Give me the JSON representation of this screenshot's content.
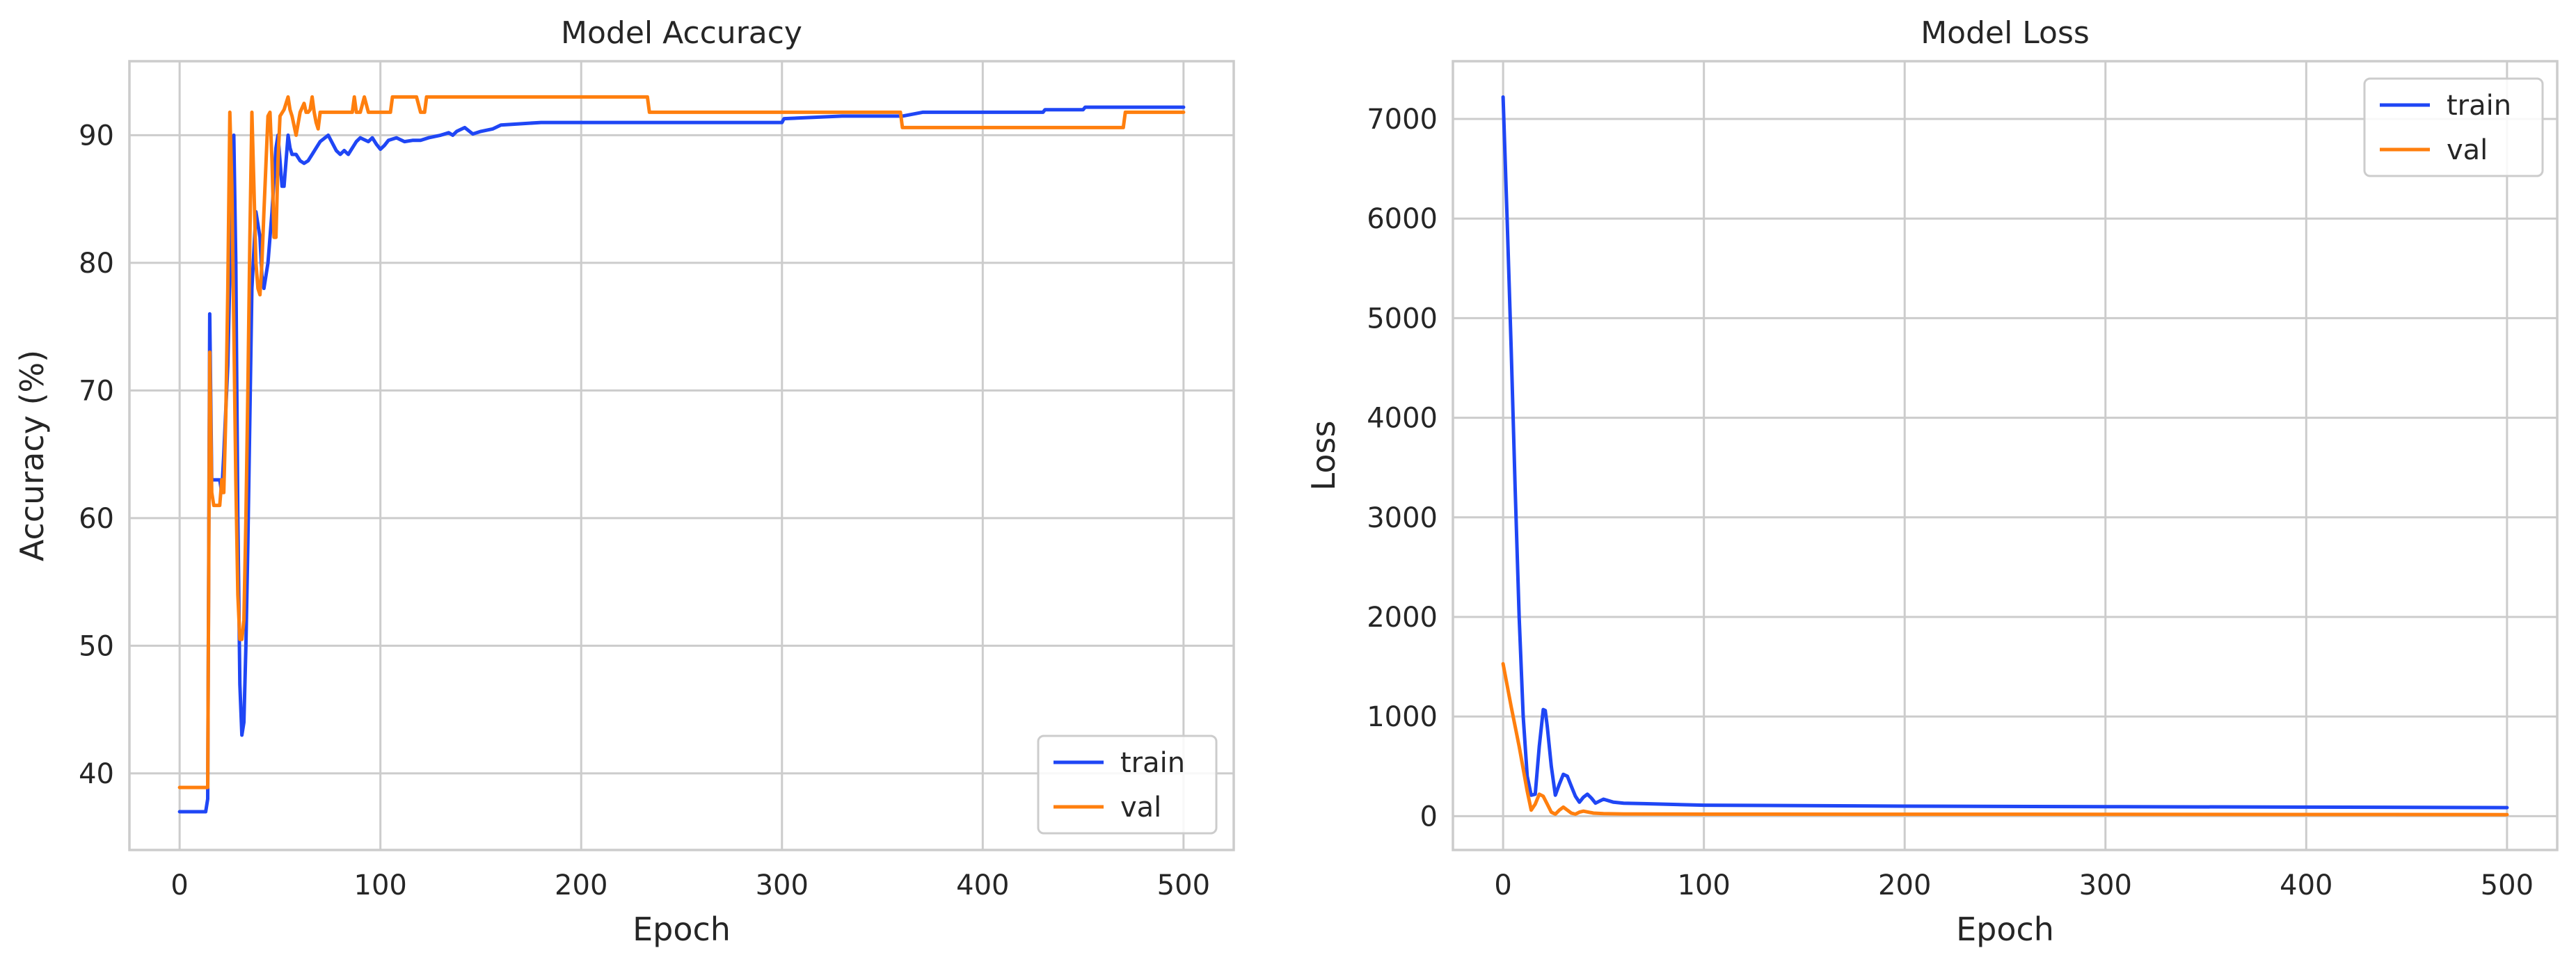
{
  "chart_data": [
    {
      "type": "line",
      "title": "Model Accuracy",
      "xlabel": "Epoch",
      "ylabel": "Accuracy (%)",
      "xlim": [
        -25,
        525
      ],
      "ylim": [
        34,
        95.8
      ],
      "xticks": [
        0,
        100,
        200,
        300,
        400,
        500
      ],
      "yticks": [
        40,
        50,
        60,
        70,
        80,
        90
      ],
      "grid": true,
      "legend": "lower-right",
      "colors": {
        "train": "#1f46f5",
        "val": "#ff7f0e"
      },
      "series": [
        {
          "name": "train",
          "points": [
            [
              0,
              37
            ],
            [
              13,
              37
            ],
            [
              14,
              38
            ],
            [
              15,
              76
            ],
            [
              16,
              63
            ],
            [
              17,
              63
            ],
            [
              20,
              63
            ],
            [
              21,
              62
            ],
            [
              22,
              65
            ],
            [
              24,
              72
            ],
            [
              26,
              86
            ],
            [
              27,
              90
            ],
            [
              28,
              80
            ],
            [
              29,
              60
            ],
            [
              30,
              47
            ],
            [
              31,
              43
            ],
            [
              32,
              44
            ],
            [
              33,
              50
            ],
            [
              34,
              58
            ],
            [
              35,
              68
            ],
            [
              36,
              78
            ],
            [
              38,
              84
            ],
            [
              40,
              82
            ],
            [
              41,
              79
            ],
            [
              42,
              78
            ],
            [
              44,
              80
            ],
            [
              46,
              84
            ],
            [
              48,
              89
            ],
            [
              49,
              90
            ],
            [
              50,
              88
            ],
            [
              51,
              86
            ],
            [
              52,
              86
            ],
            [
              53,
              88
            ],
            [
              54,
              90
            ],
            [
              55,
              89
            ],
            [
              56,
              88.5
            ],
            [
              58,
              88.5
            ],
            [
              60,
              88
            ],
            [
              62,
              87.8
            ],
            [
              64,
              88
            ],
            [
              66,
              88.5
            ],
            [
              68,
              89
            ],
            [
              70,
              89.5
            ],
            [
              74,
              90
            ],
            [
              78,
              88.8
            ],
            [
              80,
              88.5
            ],
            [
              82,
              88.8
            ],
            [
              84,
              88.5
            ],
            [
              86,
              89
            ],
            [
              88,
              89.5
            ],
            [
              90,
              89.8
            ],
            [
              94,
              89.5
            ],
            [
              96,
              89.8
            ],
            [
              98,
              89.3
            ],
            [
              100,
              88.9
            ],
            [
              102,
              89.2
            ],
            [
              104,
              89.6
            ],
            [
              108,
              89.8
            ],
            [
              112,
              89.5
            ],
            [
              116,
              89.6
            ],
            [
              120,
              89.6
            ],
            [
              124,
              89.8
            ],
            [
              130,
              90
            ],
            [
              134,
              90.2
            ],
            [
              136,
              90
            ],
            [
              138,
              90.3
            ],
            [
              142,
              90.6
            ],
            [
              146,
              90.1
            ],
            [
              150,
              90.3
            ],
            [
              156,
              90.5
            ],
            [
              160,
              90.8
            ],
            [
              180,
              91
            ],
            [
              200,
              91
            ],
            [
              250,
              91
            ],
            [
              300,
              91
            ],
            [
              301,
              91.3
            ],
            [
              330,
              91.5
            ],
            [
              360,
              91.5
            ],
            [
              370,
              91.8
            ],
            [
              400,
              91.8
            ],
            [
              430,
              91.8
            ],
            [
              431,
              92
            ],
            [
              450,
              92
            ],
            [
              451,
              92.2
            ],
            [
              500,
              92.2
            ]
          ]
        },
        {
          "name": "val",
          "points": [
            [
              0,
              38.9
            ],
            [
              13,
              38.9
            ],
            [
              14,
              38.9
            ],
            [
              15,
              73
            ],
            [
              16,
              62
            ],
            [
              17,
              61
            ],
            [
              20,
              61
            ],
            [
              21,
              63
            ],
            [
              22,
              62
            ],
            [
              23,
              68
            ],
            [
              24,
              78
            ],
            [
              25,
              91.8
            ],
            [
              26,
              86
            ],
            [
              27,
              75
            ],
            [
              28,
              63
            ],
            [
              29,
              54
            ],
            [
              30,
              50.5
            ],
            [
              31,
              50.5
            ],
            [
              32,
              52
            ],
            [
              33,
              60
            ],
            [
              34,
              70
            ],
            [
              35,
              82
            ],
            [
              36,
              91.8
            ],
            [
              37,
              86
            ],
            [
              38,
              80
            ],
            [
              39,
              78
            ],
            [
              40,
              77.5
            ],
            [
              41,
              80
            ],
            [
              42,
              84
            ],
            [
              44,
              91.5
            ],
            [
              45,
              91.8
            ],
            [
              46,
              88
            ],
            [
              47,
              82
            ],
            [
              48,
              82
            ],
            [
              49,
              88
            ],
            [
              50,
              91.5
            ],
            [
              52,
              92
            ],
            [
              54,
              93
            ],
            [
              55,
              92
            ],
            [
              56,
              91.5
            ],
            [
              58,
              90
            ],
            [
              60,
              91.8
            ],
            [
              62,
              92.5
            ],
            [
              63,
              91.8
            ],
            [
              64,
              91.8
            ],
            [
              65,
              92
            ],
            [
              66,
              93
            ],
            [
              67,
              91.8
            ],
            [
              68,
              91
            ],
            [
              69,
              90.5
            ],
            [
              70,
              91.8
            ],
            [
              86,
              91.8
            ],
            [
              87,
              93
            ],
            [
              88,
              91.8
            ],
            [
              90,
              91.8
            ],
            [
              92,
              93
            ],
            [
              94,
              91.8
            ],
            [
              105,
              91.8
            ],
            [
              106,
              93
            ],
            [
              118,
              93
            ],
            [
              120,
              91.8
            ],
            [
              122,
              91.8
            ],
            [
              123,
              93
            ],
            [
              233,
              93
            ],
            [
              234,
              91.8
            ],
            [
              359,
              91.8
            ],
            [
              360,
              90.6
            ],
            [
              470,
              90.6
            ],
            [
              471,
              91.8
            ],
            [
              500,
              91.8
            ]
          ]
        }
      ]
    },
    {
      "type": "line",
      "title": "Model Loss",
      "xlabel": "Epoch",
      "ylabel": "Loss",
      "xlim": [
        -25,
        525
      ],
      "ylim": [
        -340,
        7580
      ],
      "xticks": [
        0,
        100,
        200,
        300,
        400,
        500
      ],
      "yticks": [
        0,
        1000,
        2000,
        3000,
        4000,
        5000,
        6000,
        7000
      ],
      "grid": true,
      "legend": "upper-right",
      "colors": {
        "train": "#1f46f5",
        "val": "#ff7f0e"
      },
      "series": [
        {
          "name": "train",
          "points": [
            [
              0,
              7220
            ],
            [
              2,
              6000
            ],
            [
              4,
              4700
            ],
            [
              6,
              3300
            ],
            [
              8,
              2000
            ],
            [
              10,
              1000
            ],
            [
              12,
              400
            ],
            [
              14,
              210
            ],
            [
              16,
              220
            ],
            [
              18,
              700
            ],
            [
              20,
              1070
            ],
            [
              21,
              1060
            ],
            [
              22,
              900
            ],
            [
              24,
              500
            ],
            [
              26,
              210
            ],
            [
              28,
              320
            ],
            [
              30,
              420
            ],
            [
              32,
              400
            ],
            [
              34,
              300
            ],
            [
              36,
              200
            ],
            [
              38,
              140
            ],
            [
              40,
              190
            ],
            [
              42,
              220
            ],
            [
              44,
              180
            ],
            [
              46,
              130
            ],
            [
              48,
              150
            ],
            [
              50,
              170
            ],
            [
              55,
              140
            ],
            [
              60,
              130
            ],
            [
              70,
              125
            ],
            [
              100,
              110
            ],
            [
              200,
              100
            ],
            [
              300,
              95
            ],
            [
              400,
              90
            ],
            [
              500,
              85
            ]
          ]
        },
        {
          "name": "val",
          "points": [
            [
              0,
              1530
            ],
            [
              4,
              1100
            ],
            [
              8,
              700
            ],
            [
              12,
              250
            ],
            [
              14,
              60
            ],
            [
              16,
              120
            ],
            [
              18,
              220
            ],
            [
              20,
              200
            ],
            [
              22,
              120
            ],
            [
              24,
              40
            ],
            [
              26,
              20
            ],
            [
              28,
              60
            ],
            [
              30,
              90
            ],
            [
              32,
              60
            ],
            [
              34,
              30
            ],
            [
              36,
              20
            ],
            [
              38,
              40
            ],
            [
              40,
              50
            ],
            [
              45,
              30
            ],
            [
              50,
              25
            ],
            [
              60,
              22
            ],
            [
              100,
              20
            ],
            [
              300,
              18
            ],
            [
              500,
              15
            ]
          ]
        }
      ]
    }
  ]
}
